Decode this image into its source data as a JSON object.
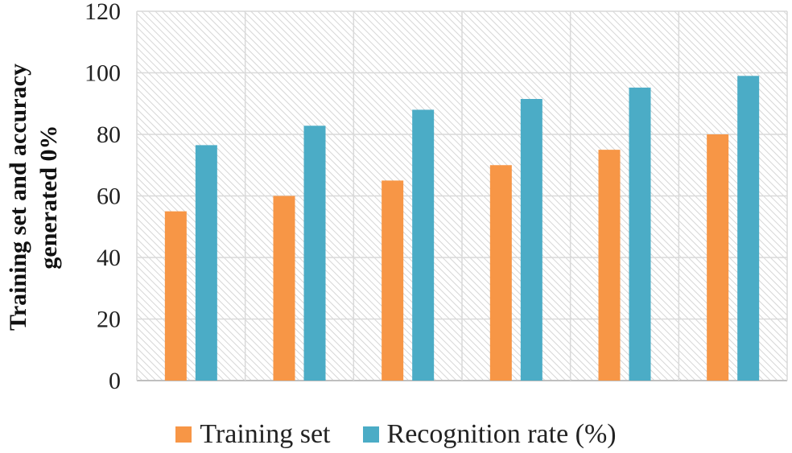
{
  "chart_data": {
    "type": "bar",
    "title": "",
    "xlabel": "",
    "ylabel_line1": "Training set and accuracy",
    "ylabel_line2": "generated 0%",
    "ylim": [
      0,
      120
    ],
    "yticks": [
      0,
      20,
      40,
      60,
      80,
      100,
      120
    ],
    "categories": [
      "",
      "",
      "",
      "",
      "",
      ""
    ],
    "series": [
      {
        "name": "Training set",
        "color": "#F79646",
        "values": [
          55,
          60,
          65,
          70,
          75,
          80
        ]
      },
      {
        "name": "Recognition rate (%)",
        "color": "#4BACC6",
        "values": [
          76.5,
          82.8,
          88,
          91.5,
          95.2,
          99
        ]
      }
    ],
    "grid": true,
    "legend_position": "bottom"
  }
}
